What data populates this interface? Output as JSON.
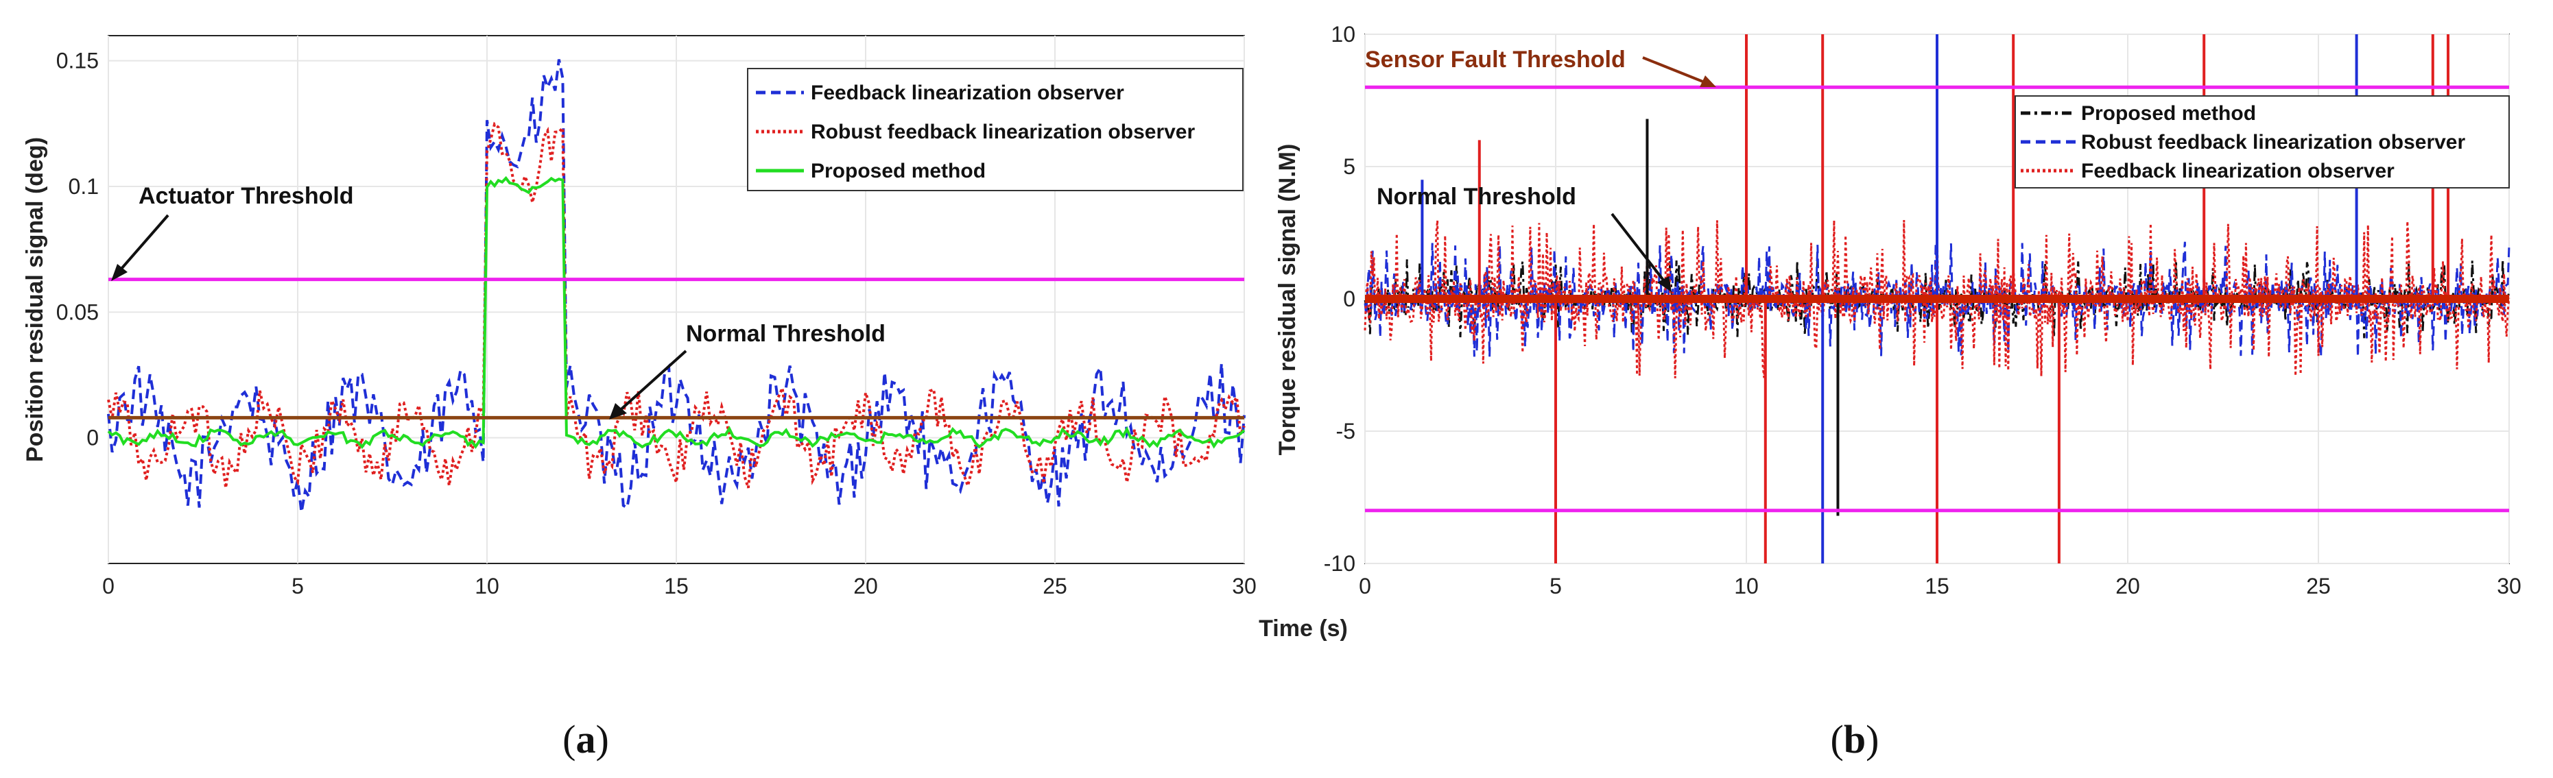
{
  "chart_data": [
    {
      "type": "line",
      "panel_label": "(a)",
      "panel_letter": "a",
      "xlabel": "Time (s)",
      "ylabel": "Position residual signal (deg)",
      "xlim": [
        0,
        30
      ],
      "ylim": [
        -0.05,
        0.16
      ],
      "grid": true,
      "x_ticks": [
        0,
        5,
        10,
        15,
        20,
        25,
        30
      ],
      "y_ticks": [
        0,
        0.05,
        0.1,
        0.15
      ],
      "x_tick_labels": [
        "0",
        "5",
        "10",
        "15",
        "20",
        "25",
        "30"
      ],
      "y_tick_labels": [
        "0",
        "0.05",
        "0.1",
        "0.15"
      ],
      "legend_position": "top-right",
      "series": [
        {
          "name": "Feedback linearization observer",
          "color": "#1f2fd6",
          "style": "dashed",
          "noise_amplitude": 0.025,
          "fault_level": 0.13
        },
        {
          "name": "Robust feedback linearization observer",
          "color": "#e02020",
          "style": "dotted",
          "noise_amplitude": 0.017,
          "fault_level": 0.11
        },
        {
          "name": "Proposed method",
          "color": "#22dd22",
          "style": "solid",
          "noise_amplitude": 0.003,
          "fault_level": 0.1
        }
      ],
      "fault_window": [
        10,
        12
      ],
      "thresholds": [
        {
          "name": "Actuator Threshold",
          "value": 0.063,
          "color": "#ee22ee"
        },
        {
          "name": "Normal Threshold",
          "value": 0.008,
          "color": "#8b4513"
        }
      ],
      "annotations": [
        {
          "text": "Actuator Threshold",
          "points_to": [
            0,
            0.063
          ]
        },
        {
          "text": "Normal Threshold",
          "points_to": [
            13.2,
            0.004
          ]
        }
      ]
    },
    {
      "type": "line",
      "panel_label": "(b)",
      "panel_letter": "b",
      "xlabel": "Time (s)",
      "ylabel": "Torque residual signal (N.M)",
      "xlim": [
        0,
        30
      ],
      "ylim": [
        -10,
        10
      ],
      "grid": true,
      "x_ticks": [
        0,
        5,
        10,
        15,
        20,
        25,
        30
      ],
      "y_ticks": [
        -10,
        -5,
        0,
        5,
        10
      ],
      "x_tick_labels": [
        "0",
        "5",
        "10",
        "15",
        "20",
        "25",
        "30"
      ],
      "y_tick_labels": [
        "-10",
        "-5",
        "0",
        "5",
        "10"
      ],
      "legend_position": "top-right",
      "series": [
        {
          "name": "Proposed method",
          "color": "#111111",
          "style": "dashdot",
          "noise_amplitude": 1.5
        },
        {
          "name": "Robust feedback linearization observer",
          "color": "#1f2fd6",
          "style": "dashed",
          "noise_amplitude": 2.2
        },
        {
          "name": "Feedback linearization observer",
          "color": "#e02020",
          "style": "dotted",
          "noise_amplitude": 3.0
        }
      ],
      "spikes": [
        {
          "x": 5.0,
          "y": -10,
          "color": "#e02020"
        },
        {
          "x": 10.0,
          "y": 10,
          "color": "#e02020"
        },
        {
          "x": 10.5,
          "y": -10,
          "color": "#e02020"
        },
        {
          "x": 12.0,
          "y": 10,
          "color": "#e02020"
        },
        {
          "x": 12.0,
          "y": -10,
          "color": "#1f2fd6"
        },
        {
          "x": 12.4,
          "y": -8.2,
          "color": "#111111"
        },
        {
          "x": 15.0,
          "y": 10,
          "color": "#1f2fd6"
        },
        {
          "x": 15.0,
          "y": -10,
          "color": "#e02020"
        },
        {
          "x": 17.0,
          "y": 10,
          "color": "#e02020"
        },
        {
          "x": 18.2,
          "y": -10,
          "color": "#e02020"
        },
        {
          "x": 22.0,
          "y": 10,
          "color": "#e02020"
        },
        {
          "x": 26.0,
          "y": 10,
          "color": "#1f2fd6"
        },
        {
          "x": 28.0,
          "y": 10,
          "color": "#e02020"
        },
        {
          "x": 28.4,
          "y": 10,
          "color": "#e02020"
        },
        {
          "x": 7.4,
          "y": 6.8,
          "color": "#111111"
        },
        {
          "x": 3.0,
          "y": 6.0,
          "color": "#e02020"
        },
        {
          "x": 1.5,
          "y": 4.5,
          "color": "#1f2fd6"
        }
      ],
      "thresholds": [
        {
          "name": "Sensor Fault Threshold",
          "value": 8,
          "color": "#ee22ee"
        },
        {
          "name": "Sensor Fault Threshold (lower)",
          "value": -8,
          "color": "#ee22ee"
        },
        {
          "name": "Normal Threshold",
          "value": 0,
          "color": "#cc2200"
        }
      ],
      "annotations": [
        {
          "text": "Sensor Fault Threshold",
          "points_to": [
            9.2,
            8
          ]
        },
        {
          "text": "Normal Threshold",
          "points_to": [
            8.2,
            0.2
          ]
        }
      ]
    }
  ]
}
